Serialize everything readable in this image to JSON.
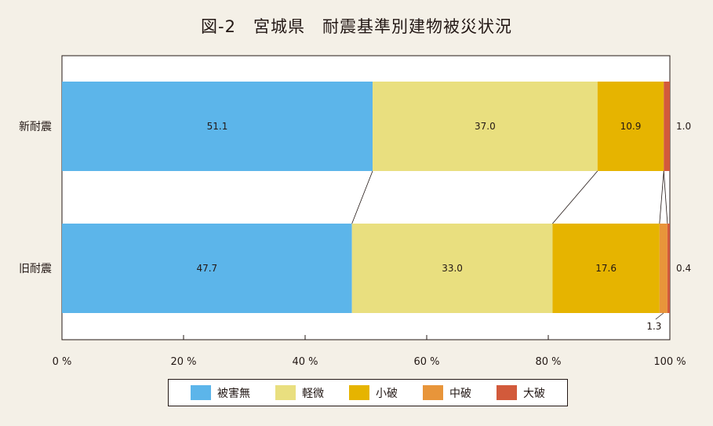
{
  "chart_data": {
    "type": "bar",
    "orientation": "horizontal",
    "stacked": true,
    "title": "図-2　宮城県　耐震基準別建物被災状況",
    "categories": [
      "新耐震",
      "旧耐震"
    ],
    "series": [
      {
        "name": "被害無",
        "values": [
          51.1,
          47.7
        ],
        "color": "#5cb5ea"
      },
      {
        "name": "軽微",
        "values": [
          37.0,
          33.0
        ],
        "color": "#e9df7f"
      },
      {
        "name": "小破",
        "values": [
          10.9,
          17.6
        ],
        "color": "#e6b400"
      },
      {
        "name": "中破",
        "values": [
          null,
          1.3
        ],
        "color": "#e8953a"
      },
      {
        "name": "大破",
        "values": [
          1.0,
          0.4
        ],
        "color": "#d25a3b"
      }
    ],
    "segment_labels": [
      [
        {
          "text": "51.1",
          "placement": "inside"
        },
        {
          "text": "37.0",
          "placement": "inside"
        },
        {
          "text": "10.9",
          "placement": "inside"
        },
        null,
        {
          "text": "1.0",
          "placement": "right"
        }
      ],
      [
        {
          "text": "47.7",
          "placement": "inside"
        },
        {
          "text": "33.0",
          "placement": "inside"
        },
        {
          "text": "17.6",
          "placement": "inside"
        },
        {
          "text": "1.3",
          "placement": "below"
        },
        {
          "text": "0.4",
          "placement": "right"
        }
      ]
    ],
    "xlim": [
      0,
      100
    ],
    "xticks": [
      0,
      20,
      40,
      60,
      80,
      100
    ],
    "xtick_labels": [
      "0 %",
      "20 %",
      "40 %",
      "60 %",
      "80 %",
      "100 %"
    ],
    "connector_lines": true,
    "legend_position": "bottom-center"
  }
}
